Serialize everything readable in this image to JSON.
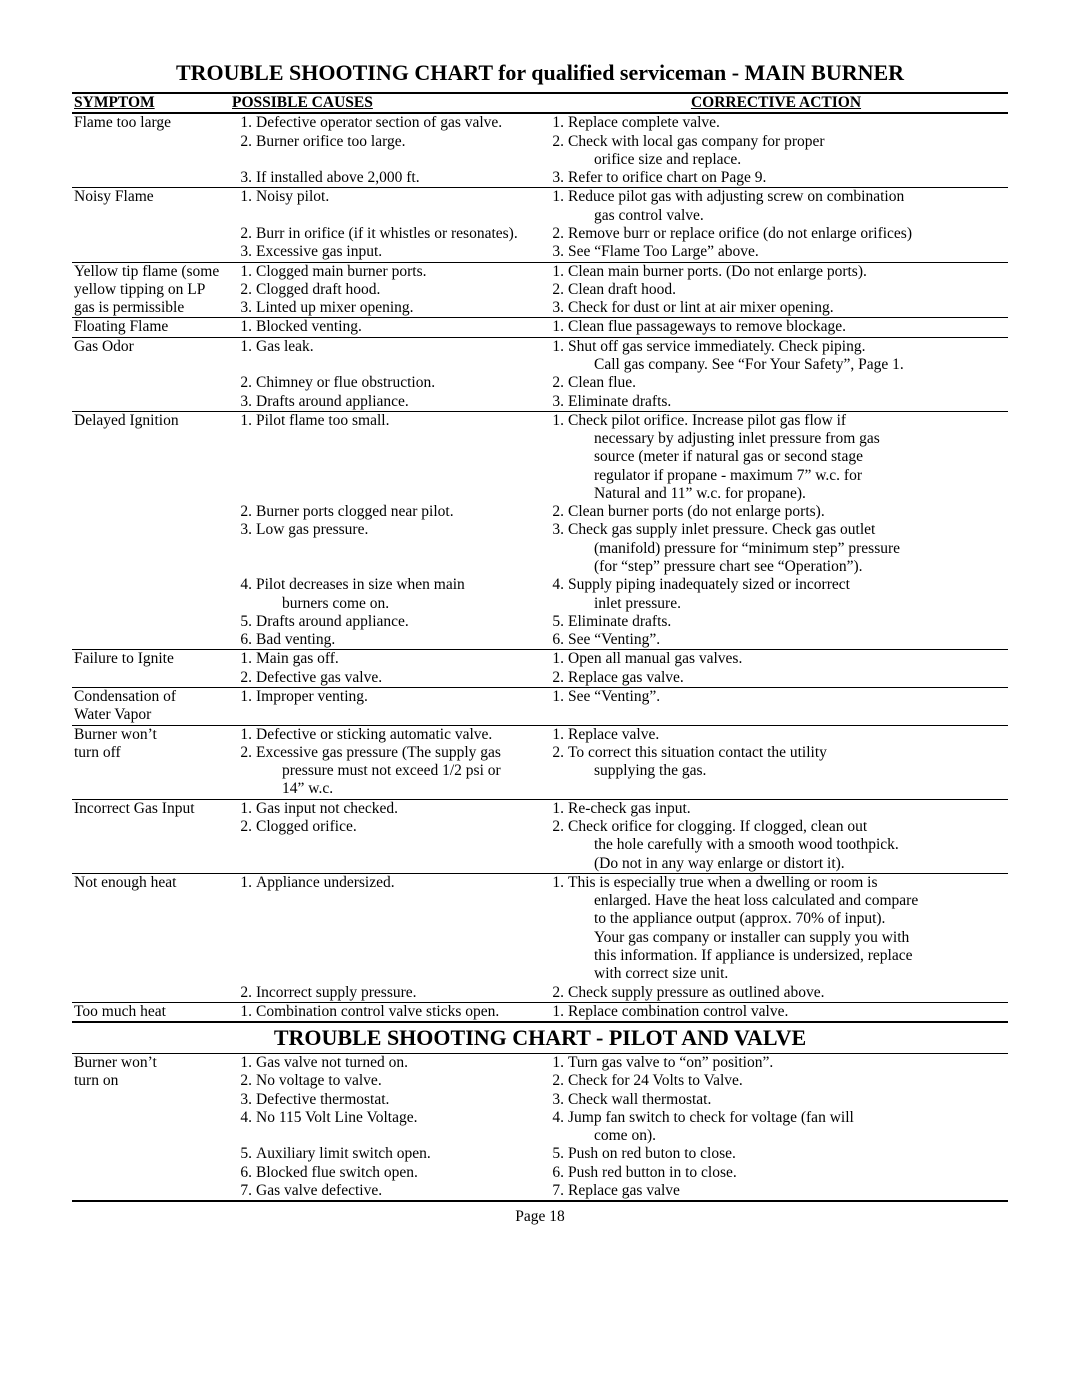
{
  "page_number": "Page 18",
  "title_main": "TROUBLE SHOOTING CHART for qualified serviceman - MAIN BURNER",
  "title_sub": "TROUBLE SHOOTING CHART - PILOT AND VALVE",
  "headers": {
    "c1": "SYMPTOM",
    "c2": "POSSIBLE CAUSES",
    "c3": "CORRECTIVE ACTION"
  },
  "rows_main": [
    {
      "symptom": [
        "Flame too large"
      ],
      "causes": [
        {
          "n": "1.",
          "t": "Defective operator section of gas valve."
        },
        {
          "n": "2.",
          "t": "Burner orifice too large."
        },
        {
          "n": "",
          "t": ""
        },
        {
          "n": "3.",
          "t": "If installed above 2,000 ft."
        }
      ],
      "actions": [
        {
          "n": "1.",
          "t": "Replace complete valve."
        },
        {
          "n": "2.",
          "t": "Check with local gas company for proper"
        },
        {
          "n": "",
          "t": "orifice size and replace.",
          "indent": true
        },
        {
          "n": "3.",
          "t": "Refer to orifice chart on Page 9."
        }
      ]
    },
    {
      "symptom": [
        "Noisy Flame"
      ],
      "causes": [
        {
          "n": "1.",
          "t": "Noisy pilot."
        },
        {
          "n": "",
          "t": ""
        },
        {
          "n": "2.",
          "t": "Burr in orifice (if it whistles or resonates)."
        },
        {
          "n": "3.",
          "t": "Excessive gas input."
        }
      ],
      "actions": [
        {
          "n": "1.",
          "t": "Reduce pilot gas with adjusting screw on combination"
        },
        {
          "n": "",
          "t": "gas control valve.",
          "indent": true
        },
        {
          "n": "2.",
          "t": "Remove burr or replace orifice (do not enlarge orifices)"
        },
        {
          "n": "3.",
          "t": "See “Flame Too Large” above."
        }
      ]
    },
    {
      "symptom": [
        "Yellow tip flame (some",
        "yellow tipping on LP",
        "gas is permissible"
      ],
      "causes": [
        {
          "n": "1.",
          "t": "Clogged main burner ports."
        },
        {
          "n": "2.",
          "t": "Clogged draft hood."
        },
        {
          "n": "3.",
          "t": "Linted up mixer opening."
        }
      ],
      "actions": [
        {
          "n": "1.",
          "t": "Clean main burner ports.  (Do not enlarge ports)."
        },
        {
          "n": "2.",
          "t": "Clean draft hood."
        },
        {
          "n": "3.",
          "t": "Check for dust or lint at air mixer opening."
        }
      ]
    },
    {
      "symptom": [
        "Floating Flame"
      ],
      "causes": [
        {
          "n": "1.",
          "t": "Blocked venting."
        }
      ],
      "actions": [
        {
          "n": "1.",
          "t": "Clean flue passageways to remove blockage."
        }
      ]
    },
    {
      "symptom": [
        "Gas Odor"
      ],
      "causes": [
        {
          "n": "1.",
          "t": "Gas leak."
        },
        {
          "n": "",
          "t": ""
        },
        {
          "n": "2.",
          "t": "Chimney or flue obstruction."
        },
        {
          "n": "3.",
          "t": "Drafts around appliance."
        }
      ],
      "actions": [
        {
          "n": "1.",
          "t": "Shut off gas service immediately.  Check piping."
        },
        {
          "n": "",
          "t": "Call gas company.  See “For Your Safety”, Page 1.",
          "indent": true
        },
        {
          "n": "2.",
          "t": "Clean flue."
        },
        {
          "n": "3.",
          "t": "Eliminate drafts."
        }
      ]
    },
    {
      "symptom": [
        "Delayed Ignition"
      ],
      "causes": [
        {
          "n": "1.",
          "t": "Pilot flame too small."
        },
        {
          "n": "",
          "t": ""
        },
        {
          "n": "",
          "t": ""
        },
        {
          "n": "",
          "t": ""
        },
        {
          "n": "",
          "t": ""
        },
        {
          "n": "2.",
          "t": "Burner ports clogged near pilot."
        },
        {
          "n": "3.",
          "t": "Low gas pressure."
        },
        {
          "n": "",
          "t": ""
        },
        {
          "n": "",
          "t": ""
        },
        {
          "n": "4.",
          "t": "Pilot decreases in size when main"
        },
        {
          "n": "",
          "t": "burners come on.",
          "indent": true
        },
        {
          "n": "5.",
          "t": "Drafts around appliance."
        },
        {
          "n": "6.",
          "t": "Bad venting."
        }
      ],
      "actions": [
        {
          "n": "1.",
          "t": "Check pilot orifice.  Increase pilot gas flow if"
        },
        {
          "n": "",
          "t": "necessary by adjusting inlet pressure from gas",
          "indent": true
        },
        {
          "n": "",
          "t": "source (meter if natural gas or second stage",
          "indent": true
        },
        {
          "n": "",
          "t": "regulator if propane - maximum 7” w.c. for",
          "indent": true
        },
        {
          "n": "",
          "t": "Natural and 11” w.c. for propane).",
          "indent": true
        },
        {
          "n": "2.",
          "t": "Clean burner ports (do not enlarge ports)."
        },
        {
          "n": "3.",
          "t": "Check gas supply inlet pressure.  Check gas outlet"
        },
        {
          "n": "",
          "t": "(manifold) pressure for “minimum step” pressure",
          "indent": true
        },
        {
          "n": "",
          "t": "(for “step” pressure chart see “Operation”).",
          "indent": true
        },
        {
          "n": "4.",
          "t": "Supply piping inadequately sized or incorrect"
        },
        {
          "n": "",
          "t": "inlet pressure.",
          "indent": true
        },
        {
          "n": "5.",
          "t": "Eliminate drafts."
        },
        {
          "n": "6.",
          "t": "See “Venting”."
        }
      ]
    },
    {
      "symptom": [
        "Failure to Ignite"
      ],
      "causes": [
        {
          "n": "1.",
          "t": "Main gas off."
        },
        {
          "n": "2.",
          "t": "Defective gas valve."
        }
      ],
      "actions": [
        {
          "n": "1.",
          "t": "Open all manual gas valves."
        },
        {
          "n": "2.",
          "t": "Replace gas valve."
        }
      ]
    },
    {
      "symptom": [
        "Condensation of",
        "Water Vapor"
      ],
      "causes": [
        {
          "n": "1.",
          "t": "Improper venting."
        }
      ],
      "actions": [
        {
          "n": "1.",
          "t": "See “Venting”."
        }
      ]
    },
    {
      "symptom": [
        "Burner won’t",
        "turn off"
      ],
      "causes": [
        {
          "n": "1.",
          "t": "Defective or sticking automatic valve."
        },
        {
          "n": "2.",
          "t": "Excessive gas pressure (The supply gas"
        },
        {
          "n": "",
          "t": "pressure must not exceed 1/2 psi or",
          "indent": true
        },
        {
          "n": "",
          "t": "14” w.c.",
          "indent": true
        }
      ],
      "actions": [
        {
          "n": "1.",
          "t": "Replace valve."
        },
        {
          "n": "2.",
          "t": "To correct this situation contact the utility"
        },
        {
          "n": "",
          "t": "supplying the gas.",
          "indent": true
        }
      ]
    },
    {
      "symptom": [
        "Incorrect Gas Input"
      ],
      "causes": [
        {
          "n": "1.",
          "t": "Gas input not checked."
        },
        {
          "n": "2.",
          "t": "Clogged orifice."
        }
      ],
      "actions": [
        {
          "n": "1.",
          "t": "Re-check gas input."
        },
        {
          "n": "2.",
          "t": "Check orifice for clogging.  If clogged, clean out"
        },
        {
          "n": "",
          "t": "the hole carefully with a smooth wood toothpick.",
          "indent": true
        },
        {
          "n": "",
          "t": "(Do not in any way enlarge or distort it).",
          "indent": true
        }
      ]
    },
    {
      "symptom": [
        "Not enough heat"
      ],
      "causes": [
        {
          "n": "1.",
          "t": "Appliance undersized."
        },
        {
          "n": "",
          "t": ""
        },
        {
          "n": "",
          "t": ""
        },
        {
          "n": "",
          "t": ""
        },
        {
          "n": "",
          "t": ""
        },
        {
          "n": "",
          "t": ""
        },
        {
          "n": "2.",
          "t": "Incorrect supply pressure."
        }
      ],
      "actions": [
        {
          "n": "1.",
          "t": "This is especially true when a dwelling or room is"
        },
        {
          "n": "",
          "t": "enlarged.  Have the heat loss calculated and compare",
          "indent": true
        },
        {
          "n": "",
          "t": "to the appliance output (approx. 70% of input).",
          "indent": true
        },
        {
          "n": "",
          "t": "Your gas company or installer can supply you with",
          "indent": true
        },
        {
          "n": "",
          "t": "this information.  If appliance is undersized, replace",
          "indent": true
        },
        {
          "n": "",
          "t": "with correct size unit.",
          "indent": true
        },
        {
          "n": "2.",
          "t": "Check supply pressure as outlined above."
        }
      ]
    },
    {
      "symptom": [
        "Too much heat"
      ],
      "causes": [
        {
          "n": "1.",
          "t": "Combination control valve sticks open."
        }
      ],
      "actions": [
        {
          "n": "1.",
          "t": "Replace combination control valve."
        }
      ]
    }
  ],
  "rows_pilot": [
    {
      "symptom": [
        "Burner won’t",
        "turn on"
      ],
      "causes": [
        {
          "n": "1.",
          "t": "Gas valve not turned on."
        },
        {
          "n": "2.",
          "t": "No voltage to valve."
        },
        {
          "n": "3.",
          "t": "Defective thermostat."
        },
        {
          "n": "4.",
          "t": "No 115 Volt Line Voltage."
        },
        {
          "n": "",
          "t": ""
        },
        {
          "n": "5.",
          "t": "Auxiliary limit switch open."
        },
        {
          "n": "6.",
          "t": "Blocked flue switch open."
        },
        {
          "n": "7.",
          "t": "Gas valve defective."
        }
      ],
      "actions": [
        {
          "n": "1.",
          "t": "Turn gas valve to “on” position”."
        },
        {
          "n": "2.",
          "t": "Check for 24 Volts to Valve."
        },
        {
          "n": "3.",
          "t": "Check wall thermostat."
        },
        {
          "n": "4.",
          "t": "Jump fan switch to check for voltage (fan will"
        },
        {
          "n": "",
          "t": "come on).",
          "indent": true
        },
        {
          "n": "5.",
          "t": "Push on red buton to close."
        },
        {
          "n": "6.",
          "t": "Push red button in to close."
        },
        {
          "n": "7.",
          "t": "Replace gas valve"
        }
      ]
    }
  ]
}
